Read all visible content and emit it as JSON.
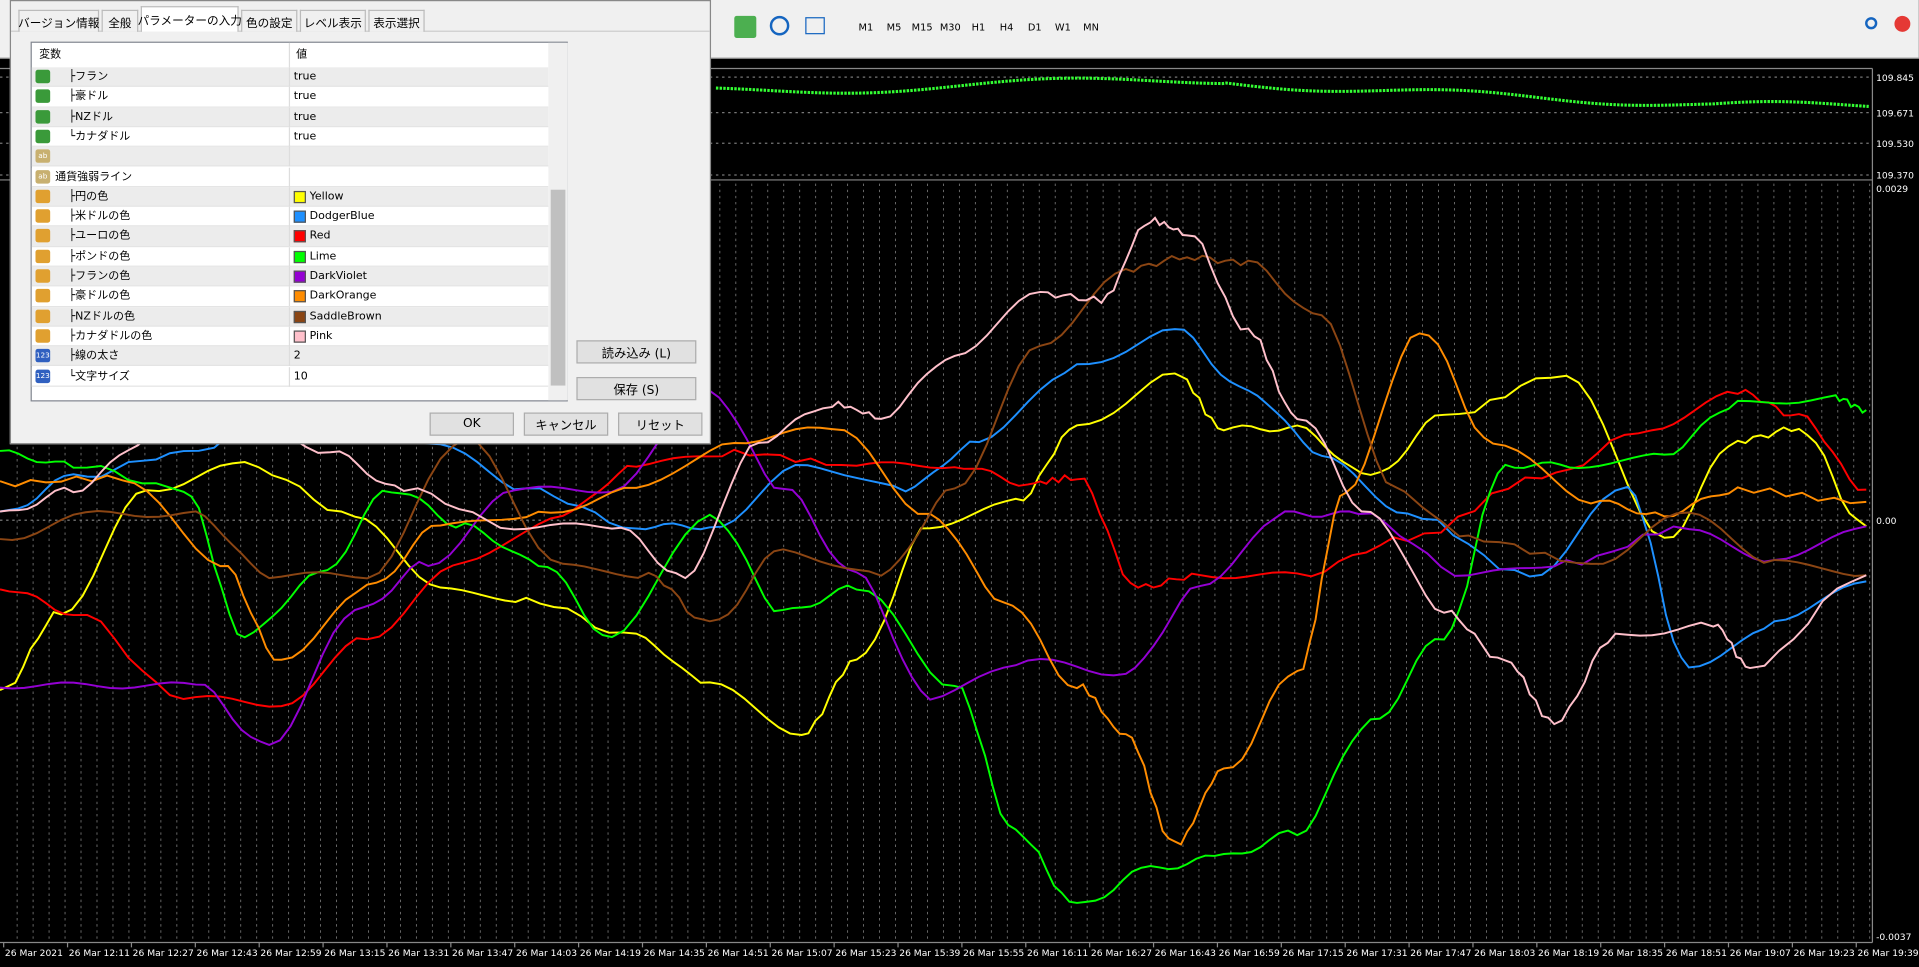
{
  "toolbar": {
    "timeframes": [
      "M1",
      "M5",
      "M15",
      "M30",
      "H1",
      "H4",
      "D1",
      "W1",
      "MN"
    ]
  },
  "dialog": {
    "tabs": [
      "バージョン情報",
      "全般",
      "パラメーターの入力",
      "色の設定",
      "レベル表示",
      "表示選択"
    ],
    "table": {
      "headers": [
        "変数",
        "値"
      ],
      "rows": [
        {
          "icon": "bool",
          "name": "├フラン",
          "value": "true"
        },
        {
          "icon": "bool",
          "name": "├豪ドル",
          "value": "true"
        },
        {
          "icon": "bool",
          "name": "├NZドル",
          "value": "true"
        },
        {
          "icon": "bool",
          "name": "└カナダドル",
          "value": "true"
        },
        {
          "icon": "ab"
        },
        {
          "icon": "ab",
          "name": "通貨強弱ライン"
        },
        {
          "icon": "color",
          "name": "├円の色",
          "value": "Yellow",
          "swatch": "#ffff00"
        },
        {
          "icon": "color",
          "name": "├米ドルの色",
          "value": "DodgerBlue",
          "swatch": "#1e90ff"
        },
        {
          "icon": "color",
          "name": "├ユーロの色",
          "value": "Red",
          "swatch": "#ff0000"
        },
        {
          "icon": "color",
          "name": "├ポンドの色",
          "value": "Lime",
          "swatch": "#00ff00"
        },
        {
          "icon": "color",
          "name": "├フランの色",
          "value": "DarkViolet",
          "swatch": "#9400d3"
        },
        {
          "icon": "color",
          "name": "├豪ドルの色",
          "value": "DarkOrange",
          "swatch": "#ff8c00"
        },
        {
          "icon": "color",
          "name": "├NZドルの色",
          "value": "SaddleBrown",
          "swatch": "#8b4513"
        },
        {
          "icon": "color",
          "name": "├カナダドルの色",
          "value": "Pink",
          "swatch": "#ffc0cb"
        },
        {
          "icon": "int",
          "name": "├線の太さ",
          "value": "2"
        },
        {
          "icon": "int",
          "name": "└文字サイズ",
          "value": "10"
        }
      ]
    },
    "buttons": {
      "load": "読み込み (L)",
      "save": "保存 (S)",
      "ok": "OK",
      "cancel": "キャンセル",
      "reset": "リセット"
    }
  },
  "chart": {
    "price_labels": [
      "109.845",
      "109.671",
      "109.530",
      "109.370"
    ],
    "indicator_labels": [
      "0.0029",
      "0.00",
      "-0.0037"
    ],
    "time_labels": [
      "26 Mar 2021",
      "26 Mar 12:11",
      "26 Mar 12:27",
      "26 Mar 12:43",
      "26 Mar 12:59",
      "26 Mar 13:15",
      "26 Mar 13:31",
      "26 Mar 13:47",
      "26 Mar 14:03",
      "26 Mar 14:19",
      "26 Mar 14:35",
      "26 Mar 14:51",
      "26 Mar 15:07",
      "26 Mar 15:23",
      "26 Mar 15:39",
      "26 Mar 15:55",
      "26 Mar 16:11",
      "26 Mar 16:27",
      "26 Mar 16:43",
      "26 Mar 16:59",
      "26 Mar 17:15",
      "26 Mar 17:31",
      "26 Mar 17:47",
      "26 Mar 18:03",
      "26 Mar 18:19",
      "26 Mar 18:35",
      "26 Mar 18:51",
      "26 Mar 19:07",
      "26 Mar 19:23",
      "26 Mar 19:39"
    ]
  }
}
